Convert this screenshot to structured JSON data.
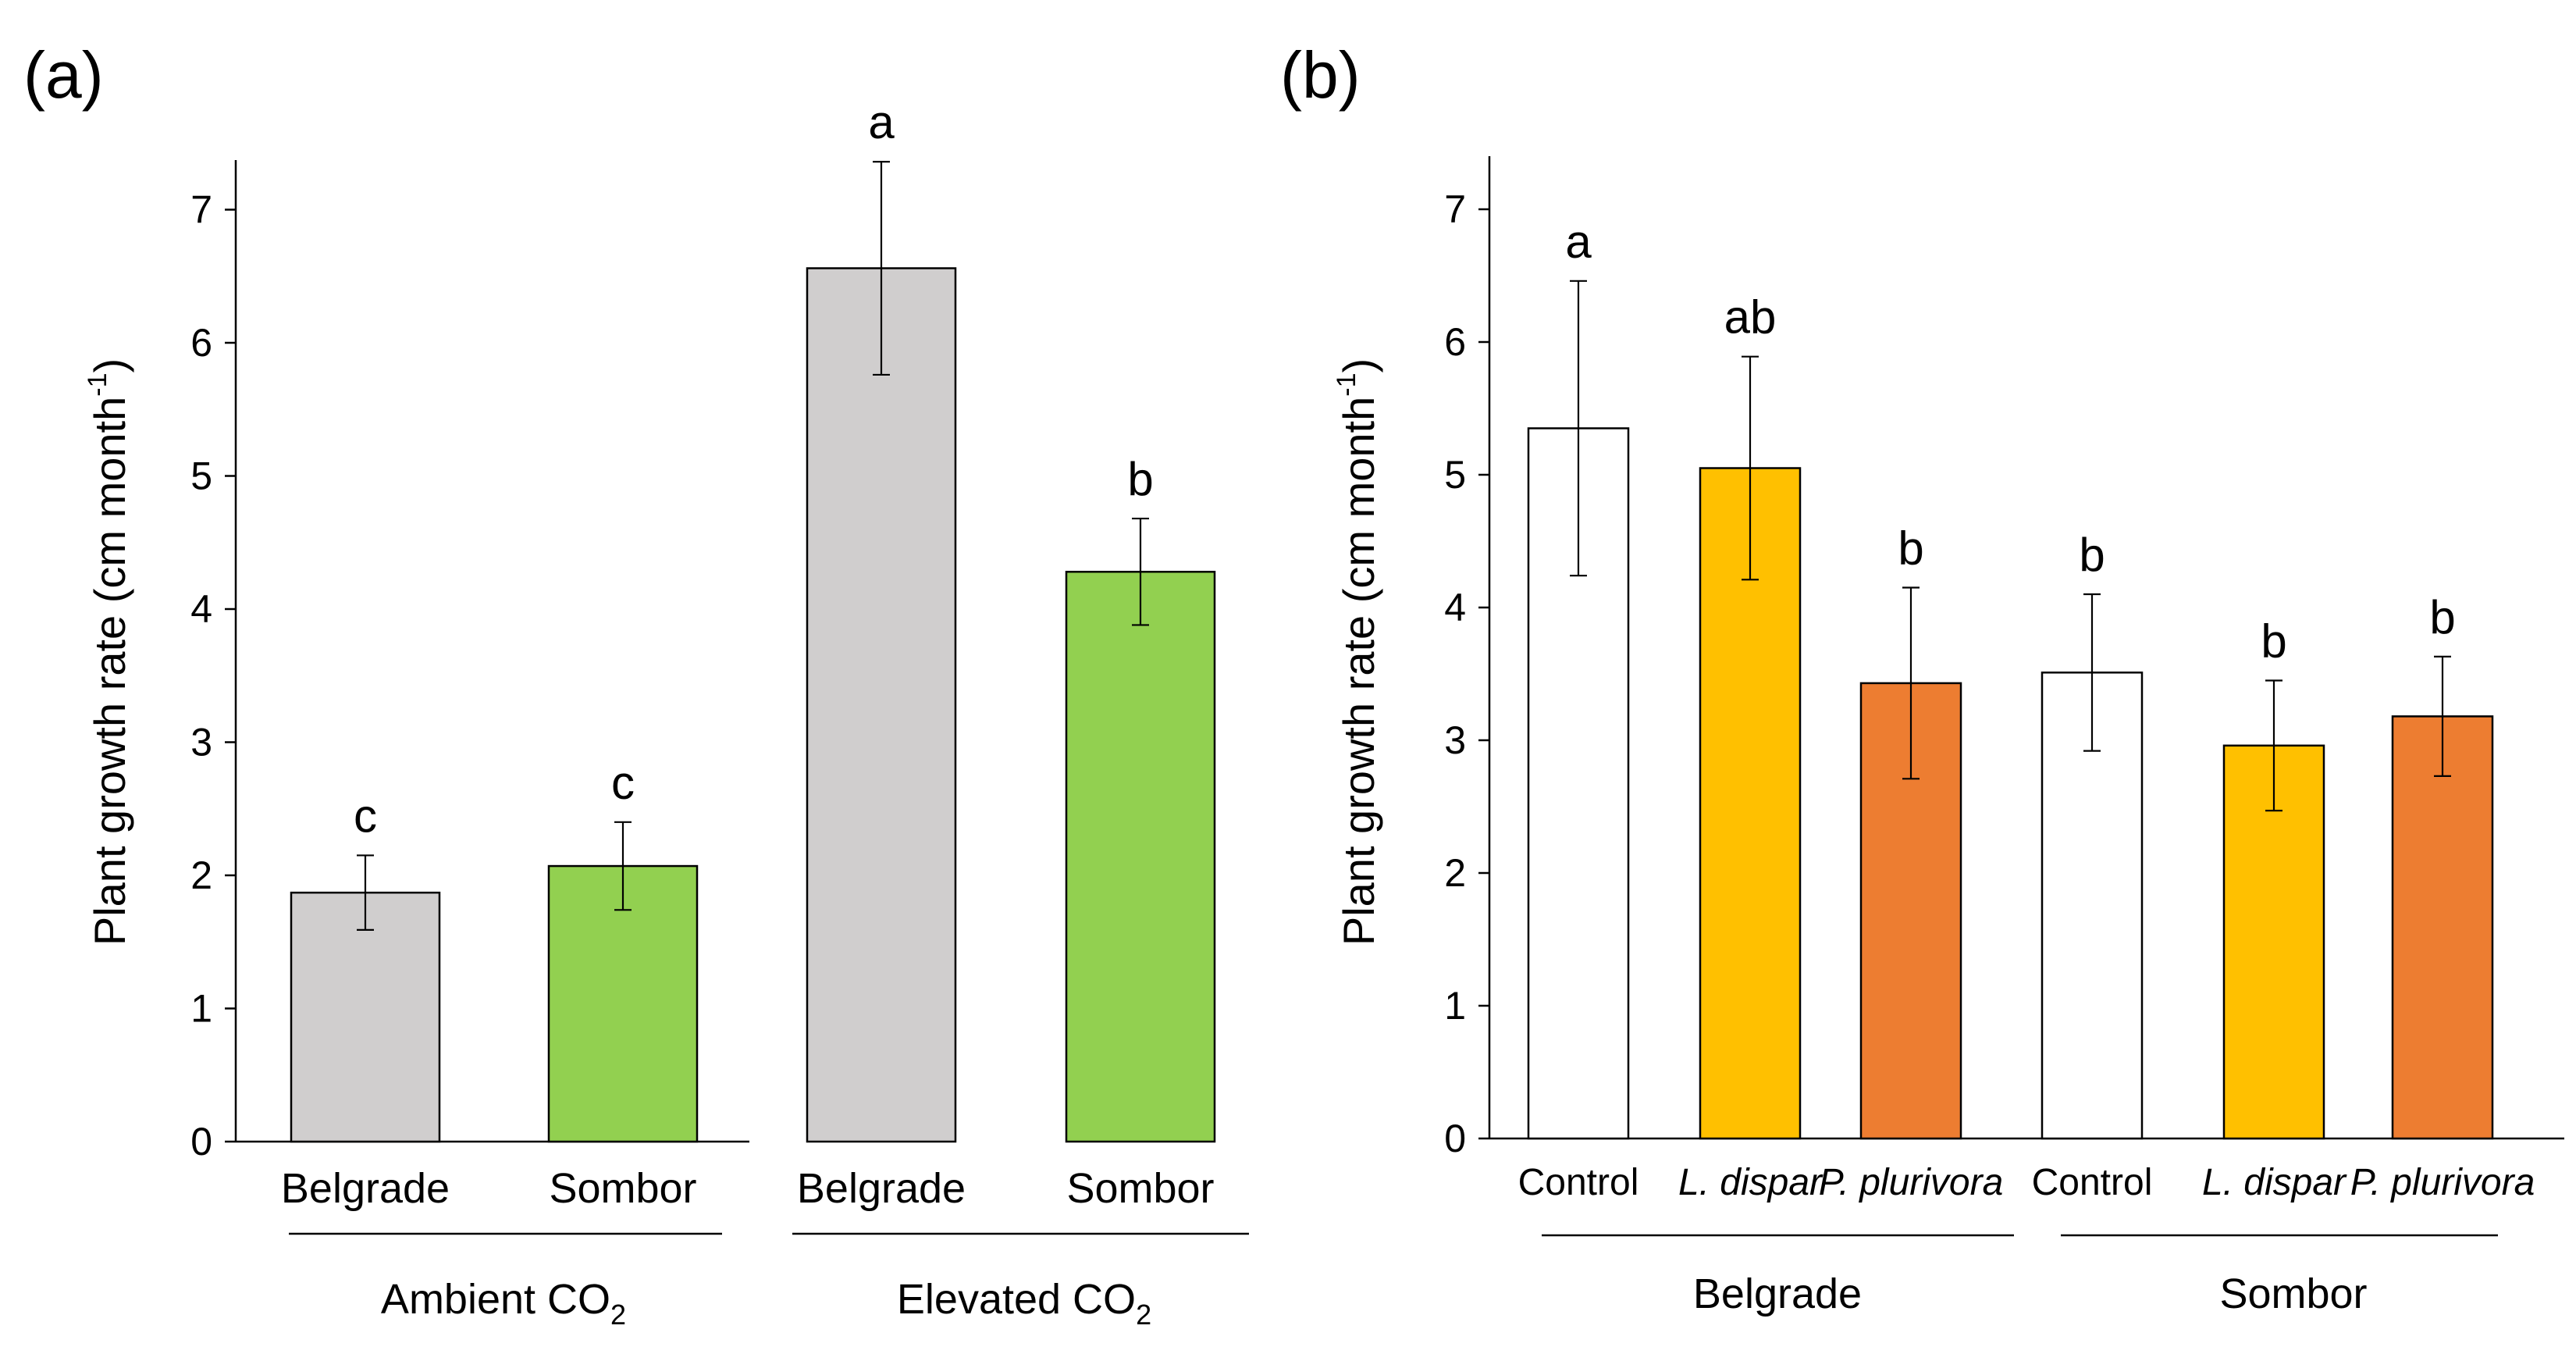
{
  "colors": {
    "grey": "#d0cece",
    "green": "#92d050",
    "white": "#ffffff",
    "yellow": "#ffc000",
    "orange": "#ed7d31",
    "axis": "#000000"
  },
  "chart_data": [
    {
      "type": "bar",
      "panel_label": "(a)",
      "ylabel_main": "Plant growth rate (cm month",
      "ylabel_sup": "-1",
      "ylabel_end": ")",
      "ylim": [
        0,
        7.4
      ],
      "yticks": [
        "0",
        "1",
        "2",
        "3",
        "4",
        "5",
        "6",
        "7"
      ],
      "categories": [
        "Belgrade",
        "Sombor",
        "Belgrade",
        "Sombor"
      ],
      "values": [
        1.87,
        2.07,
        6.56,
        4.28
      ],
      "errors": [
        0.28,
        0.33,
        0.8,
        0.4
      ],
      "significance": [
        "c",
        "c",
        "a",
        "b"
      ],
      "bar_colors": [
        "grey",
        "green",
        "grey",
        "green"
      ],
      "groups": [
        {
          "label_main": "Ambient CO",
          "label_sub": "2"
        },
        {
          "label_main": "Elevated CO",
          "label_sub": "2"
        }
      ]
    },
    {
      "type": "bar",
      "panel_label": "(b)",
      "ylabel_main": "Plant growth rate (cm month",
      "ylabel_sup": "-1",
      "ylabel_end": ")",
      "ylim": [
        0,
        7.4
      ],
      "yticks": [
        "0",
        "1",
        "2",
        "3",
        "4",
        "5",
        "6",
        "7"
      ],
      "categories": [
        "Control",
        "L. dispar",
        "P. plurivora",
        "Control",
        "L. dispar",
        "P. plurivora"
      ],
      "values": [
        5.35,
        5.05,
        3.43,
        3.51,
        2.96,
        3.18
      ],
      "errors": [
        1.11,
        0.84,
        0.72,
        0.59,
        0.49,
        0.45
      ],
      "significance": [
        "a",
        "ab",
        "b",
        "b",
        "b",
        "b"
      ],
      "bar_colors": [
        "white",
        "yellow",
        "orange",
        "white",
        "yellow",
        "orange"
      ],
      "groups": [
        {
          "label_main": "Belgrade",
          "label_sub": ""
        },
        {
          "label_main": "Sombor",
          "label_sub": ""
        }
      ]
    }
  ]
}
